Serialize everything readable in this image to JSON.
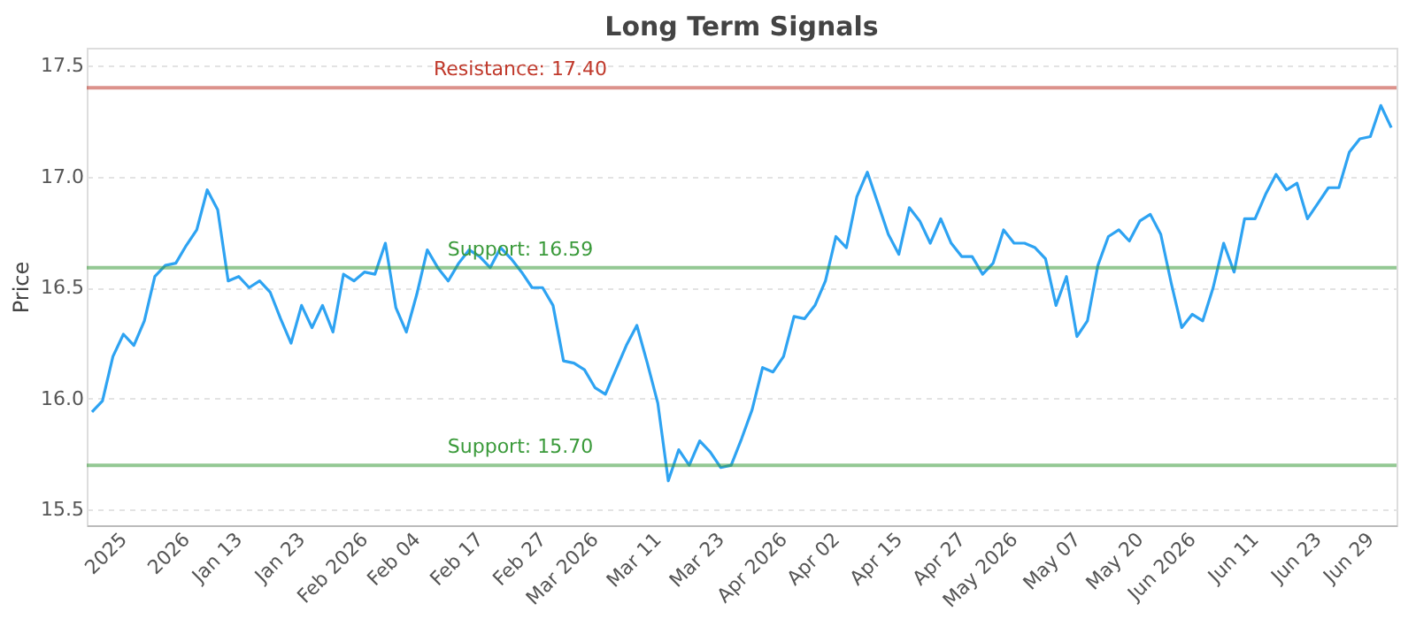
{
  "chart_data": {
    "type": "line",
    "title": "Long Term Signals",
    "ylabel": "Price",
    "categories": [
      null,
      null,
      null,
      "2025",
      null,
      null,
      null,
      null,
      null,
      "2026",
      null,
      null,
      null,
      null,
      "Jan 13",
      null,
      null,
      null,
      null,
      null,
      "Jan 23",
      null,
      null,
      null,
      null,
      null,
      "Feb 2026",
      null,
      null,
      null,
      null,
      "Feb 04",
      null,
      null,
      null,
      null,
      null,
      "Feb 17",
      null,
      null,
      null,
      null,
      null,
      "Feb 27",
      null,
      null,
      null,
      null,
      "Mar 2026",
      null,
      null,
      null,
      null,
      null,
      "Mar 11",
      null,
      null,
      null,
      null,
      null,
      "Mar 23",
      null,
      null,
      null,
      null,
      null,
      "Apr 2026",
      null,
      null,
      null,
      null,
      "Apr 02",
      null,
      null,
      null,
      null,
      null,
      "Apr 15",
      null,
      null,
      null,
      null,
      null,
      "Apr 27",
      null,
      null,
      null,
      null,
      "May 2026",
      null,
      null,
      null,
      null,
      null,
      "May 07",
      null,
      null,
      null,
      null,
      null,
      "May 20",
      null,
      null,
      null,
      null,
      "Jun 2026",
      null,
      null,
      null,
      null,
      null,
      "Jun 11",
      null,
      null,
      null,
      null,
      null,
      "Jun 23",
      null,
      null,
      null,
      null,
      "Jun 29",
      null,
      null
    ],
    "series": [
      {
        "color": "#2ea3f2",
        "values": [
          15.94,
          15.99,
          16.19,
          16.29,
          16.24,
          16.35,
          16.55,
          16.6,
          16.61,
          16.69,
          16.76,
          16.94,
          16.85,
          16.53,
          16.55,
          16.5,
          16.53,
          16.48,
          16.36,
          16.25,
          16.42,
          16.32,
          16.42,
          16.3,
          16.56,
          16.53,
          16.57,
          16.56,
          16.7,
          16.41,
          16.3,
          16.47,
          16.67,
          16.59,
          16.53,
          16.61,
          16.67,
          16.64,
          16.59,
          16.68,
          16.63,
          16.57,
          16.5,
          16.5,
          16.42,
          16.17,
          16.16,
          16.13,
          16.05,
          16.02,
          16.13,
          16.24,
          16.33,
          16.16,
          15.98,
          15.63,
          15.77,
          15.7,
          15.81,
          15.76,
          15.69,
          15.7,
          15.82,
          15.95,
          16.14,
          16.12,
          16.19,
          16.37,
          16.36,
          16.42,
          16.53,
          16.73,
          16.68,
          16.91,
          17.02,
          16.88,
          16.74,
          16.65,
          16.86,
          16.8,
          16.7,
          16.81,
          16.7,
          16.64,
          16.64,
          16.56,
          16.61,
          16.76,
          16.7,
          16.7,
          16.68,
          16.63,
          16.42,
          16.55,
          16.28,
          16.35,
          16.6,
          16.73,
          16.76,
          16.71,
          16.8,
          16.83,
          16.74,
          16.52,
          16.32,
          16.38,
          16.35,
          16.5,
          16.7,
          16.57,
          16.81,
          16.81,
          16.92,
          17.01,
          16.94,
          16.97,
          16.81,
          16.88,
          16.95,
          16.95,
          17.11,
          17.17,
          17.18,
          17.32,
          17.22
        ]
      }
    ],
    "ylim": [
      15.43,
      17.58
    ],
    "yticks": [
      15.5,
      {
        "value": 16,
        "label": "16.0"
      },
      16.5,
      {
        "value": 17,
        "label": "17.0"
      },
      17.5
    ],
    "ref_lines": [
      {
        "axis": "y",
        "value": 17.4,
        "label": "Resistance: 17.40",
        "color": "#c0392b"
      },
      {
        "axis": "y",
        "value": 16.59,
        "label": "Support: 16.59",
        "color": "#3a9a3a"
      },
      {
        "axis": "y",
        "value": 15.7,
        "label": "Support: 15.70",
        "color": "#3a9a3a"
      }
    ],
    "grid": "y",
    "marker": "none",
    "line_style": "solid"
  }
}
